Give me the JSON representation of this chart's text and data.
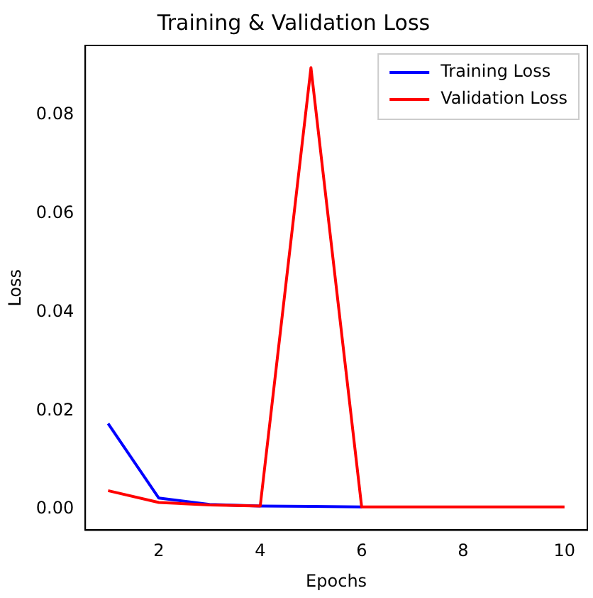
{
  "chart_data": {
    "type": "line",
    "title": "Training & Validation Loss",
    "xlabel": "Epochs",
    "ylabel": "Loss",
    "x": [
      1,
      2,
      3,
      4,
      5,
      6,
      7,
      8,
      9,
      10
    ],
    "series": [
      {
        "name": "Training Loss",
        "color": "#0000ff",
        "values": [
          0.0174,
          0.0023,
          0.001,
          0.0007,
          0.0006,
          0.0005,
          null,
          null,
          null,
          null
        ]
      },
      {
        "name": "Validation Loss",
        "color": "#ff0000",
        "values": [
          0.0038,
          0.0014,
          0.0009,
          0.0007,
          0.0896,
          0.0005,
          0.0005,
          0.0005,
          0.0005,
          0.0005
        ]
      }
    ],
    "xlim": [
      0.55,
      10.45
    ],
    "xticks": [
      2,
      4,
      6,
      8,
      10
    ],
    "ylim": [
      -0.0042,
      0.0941
    ],
    "yticks": [
      {
        "value": 0,
        "label": "0.00"
      },
      {
        "value": 0.02,
        "label": "0.02"
      },
      {
        "value": 0.04,
        "label": "0.04"
      },
      {
        "value": 0.06,
        "label": "0.06"
      },
      {
        "value": 0.08,
        "label": "0.08"
      }
    ],
    "grid": false,
    "legend": "top right",
    "marker": "none",
    "line_style": "solid"
  }
}
